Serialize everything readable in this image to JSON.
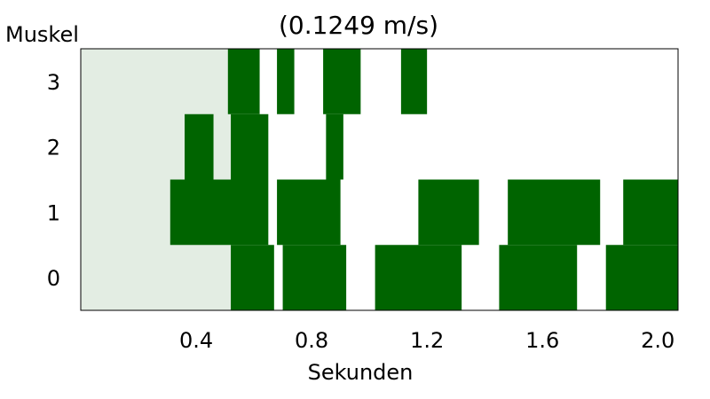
{
  "chart_data": {
    "type": "broken-bar",
    "title": "(0.1249 m/s)",
    "xlabel": "Sekunden",
    "ylabel": "Muskel",
    "xlim": [
      0.0,
      2.07
    ],
    "ylim": [
      -0.5,
      3.5
    ],
    "x_ticks": [
      "0.4",
      "0.8",
      "1.2",
      "1.6",
      "2.0"
    ],
    "x_tick_values": [
      0.4,
      0.8,
      1.2,
      1.6,
      2.0
    ],
    "y_ticks": [
      "0",
      "1",
      "2",
      "3"
    ],
    "y_tick_values": [
      0,
      1,
      2,
      3
    ],
    "shaded_region": {
      "x": [
        0.0,
        0.52
      ],
      "color": "#e3ede3"
    },
    "bar_color": "#006400",
    "series": [
      {
        "muscle": 0,
        "segments": [
          [
            0.52,
            0.67
          ],
          [
            0.7,
            0.92
          ],
          [
            1.02,
            1.32
          ],
          [
            1.45,
            1.72
          ],
          [
            1.82,
            2.07
          ]
        ]
      },
      {
        "muscle": 1,
        "segments": [
          [
            0.31,
            0.65
          ],
          [
            0.68,
            0.9
          ],
          [
            1.17,
            1.38
          ],
          [
            1.48,
            1.8
          ],
          [
            1.88,
            2.07
          ]
        ]
      },
      {
        "muscle": 2,
        "segments": [
          [
            0.36,
            0.46
          ],
          [
            0.52,
            0.65
          ],
          [
            0.85,
            0.91
          ]
        ]
      },
      {
        "muscle": 3,
        "segments": [
          [
            0.51,
            0.62
          ],
          [
            0.68,
            0.74
          ],
          [
            0.84,
            0.97
          ],
          [
            1.11,
            1.2
          ]
        ]
      }
    ]
  }
}
